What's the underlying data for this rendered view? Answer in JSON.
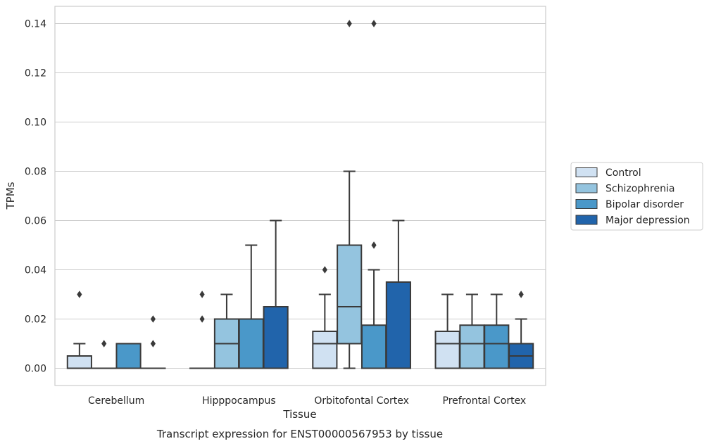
{
  "chart_data": {
    "type": "box",
    "title": "",
    "caption": "Transcript expression for ENST00000567953 by tissue",
    "xlabel": "Tissue",
    "ylabel": "TPMs",
    "ylim": [
      -0.007,
      0.147
    ],
    "yticks": [
      "0.00",
      "0.02",
      "0.04",
      "0.06",
      "0.08",
      "0.10",
      "0.12",
      "0.14"
    ],
    "ytick_values": [
      0,
      0.02,
      0.04,
      0.06,
      0.08,
      0.1,
      0.12,
      0.14
    ],
    "grid": "horizontal",
    "legend_position": "right",
    "categories": [
      "Cerebellum",
      "Hipppocampus",
      "Orbitofontal Cortex",
      "Prefrontal Cortex"
    ],
    "series": [
      {
        "name": "Control",
        "color": "#d0e1f2",
        "boxes": [
          {
            "whisker_low": 0,
            "q1": 0,
            "median": 0,
            "q3": 0.005,
            "whisker_high": 0.01,
            "outliers": [
              0.03
            ]
          },
          {
            "whisker_low": 0,
            "q1": 0,
            "median": 0,
            "q3": 0,
            "whisker_high": 0,
            "outliers": [
              0.02,
              0.03
            ]
          },
          {
            "whisker_low": 0,
            "q1": 0,
            "median": 0.01,
            "q3": 0.015,
            "whisker_high": 0.03,
            "outliers": [
              0.04
            ]
          },
          {
            "whisker_low": 0,
            "q1": 0,
            "median": 0.01,
            "q3": 0.015,
            "whisker_high": 0.03,
            "outliers": []
          }
        ]
      },
      {
        "name": "Schizophrenia",
        "color": "#94c4df",
        "boxes": [
          {
            "whisker_low": 0,
            "q1": 0,
            "median": 0,
            "q3": 0,
            "whisker_high": 0,
            "outliers": [
              0.01
            ]
          },
          {
            "whisker_low": 0,
            "q1": 0,
            "median": 0.01,
            "q3": 0.02,
            "whisker_high": 0.03,
            "outliers": []
          },
          {
            "whisker_low": 0,
            "q1": 0.01,
            "median": 0.025,
            "q3": 0.05,
            "whisker_high": 0.08,
            "outliers": [
              0.14
            ]
          },
          {
            "whisker_low": 0,
            "q1": 0,
            "median": 0.01,
            "q3": 0.0175,
            "whisker_high": 0.03,
            "outliers": []
          }
        ]
      },
      {
        "name": "Bipolar disorder",
        "color": "#4a98c9",
        "boxes": [
          {
            "whisker_low": 0,
            "q1": 0,
            "median": 0,
            "q3": 0.01,
            "whisker_high": 0.01,
            "outliers": []
          },
          {
            "whisker_low": 0,
            "q1": 0,
            "median": 0,
            "q3": 0.02,
            "whisker_high": 0.05,
            "outliers": []
          },
          {
            "whisker_low": 0,
            "q1": 0,
            "median": 0,
            "q3": 0.0175,
            "whisker_high": 0.04,
            "outliers": [
              0.05,
              0.14
            ]
          },
          {
            "whisker_low": 0,
            "q1": 0,
            "median": 0.01,
            "q3": 0.0175,
            "whisker_high": 0.03,
            "outliers": []
          }
        ]
      },
      {
        "name": "Major depression",
        "color": "#2164ab",
        "boxes": [
          {
            "whisker_low": 0,
            "q1": 0,
            "median": 0,
            "q3": 0,
            "whisker_high": 0,
            "outliers": [
              0.01,
              0.02
            ]
          },
          {
            "whisker_low": 0,
            "q1": 0,
            "median": 0,
            "q3": 0.025,
            "whisker_high": 0.06,
            "outliers": []
          },
          {
            "whisker_low": 0,
            "q1": 0,
            "median": 0,
            "q3": 0.035,
            "whisker_high": 0.06,
            "outliers": []
          },
          {
            "whisker_low": 0,
            "q1": 0,
            "median": 0.005,
            "q3": 0.01,
            "whisker_high": 0.02,
            "outliers": [
              0.03
            ]
          }
        ]
      }
    ]
  }
}
